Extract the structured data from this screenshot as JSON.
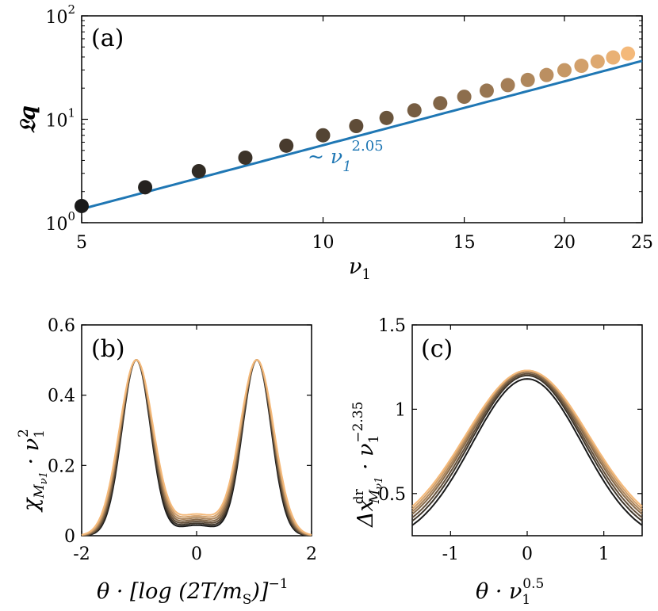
{
  "chart_data": [
    {
      "panel": "(a)",
      "type": "scatter",
      "x_scale": "log",
      "y_scale": "log",
      "xlabel": "ν1",
      "ylabel": "𝔏q",
      "xlim": [
        5,
        25
      ],
      "ylim": [
        1,
        100
      ],
      "x_ticks": [
        5,
        10,
        15,
        20,
        25
      ],
      "y_ticks": [
        {
          "value": 1,
          "base": "10",
          "exp": "0"
        },
        {
          "value": 10,
          "base": "10",
          "exp": "1"
        },
        {
          "value": 100,
          "base": "10",
          "exp": "2"
        }
      ],
      "points": {
        "x": [
          5,
          6,
          7,
          8,
          9,
          10,
          11,
          12,
          13,
          14,
          15,
          16,
          17,
          18,
          19,
          20,
          21,
          22,
          23,
          24
        ],
        "y": [
          1.45,
          2.2,
          3.15,
          4.25,
          5.55,
          7.0,
          8.6,
          10.3,
          12.2,
          14.3,
          16.5,
          18.9,
          21.4,
          24.0,
          26.8,
          29.8,
          32.9,
          36.2,
          39.6,
          43.2
        ]
      },
      "fit": {
        "label_base": "~ ν",
        "label_sub": "1",
        "label_exp": "2.05",
        "exponent": 2.05,
        "coefficient": 0.05,
        "color": "#1f77b4"
      },
      "color_gradient": [
        "#1a1a1a",
        "#f4b97a"
      ]
    },
    {
      "panel": "(b)",
      "type": "line",
      "xlabel_parts": [
        "θ · [log (2T/m",
        "S",
        ")]",
        "−1"
      ],
      "ylabel_parts": [
        "χ",
        "M",
        "ν1",
        " · ν",
        "1",
        "2"
      ],
      "xlim": [
        -2,
        2
      ],
      "ylim": [
        0,
        0.6
      ],
      "x_ticks": [
        "-2",
        "0",
        "2"
      ],
      "y_ticks": [
        "0",
        "0.2",
        "0.4",
        "0.6"
      ],
      "model": {
        "peak_positions": [
          -1.05,
          1.05
        ],
        "peak_height": 0.5,
        "width": 0.25,
        "center_min_values": [
          0.03,
          0.035,
          0.04,
          0.045,
          0.05,
          0.055,
          0.06
        ]
      },
      "color_gradient": [
        "#1a1a1a",
        "#f4b97a"
      ]
    },
    {
      "panel": "(c)",
      "type": "line",
      "xlabel_parts": [
        "θ · ν",
        "1",
        "0.5"
      ],
      "ylabel_parts": [
        "Δx",
        "dr",
        "M",
        "ν1",
        " · ν",
        "1",
        "−2.35"
      ],
      "xlim": [
        -1.5,
        1.5
      ],
      "ylim": [
        0.25,
        1.5
      ],
      "x_ticks": [
        "-1",
        "0",
        "1"
      ],
      "y_ticks": [
        "0.5",
        "1",
        "1.5"
      ],
      "model": {
        "peak_values": [
          1.18,
          1.2,
          1.21,
          1.22,
          1.225,
          1.23,
          1.23
        ],
        "sigma": 0.72,
        "tail_offsets": [
          -0.1,
          -0.07,
          -0.05,
          -0.03,
          -0.02,
          -0.01,
          0.0
        ]
      },
      "color_gradient": [
        "#1a1a1a",
        "#f4b97a"
      ]
    }
  ]
}
